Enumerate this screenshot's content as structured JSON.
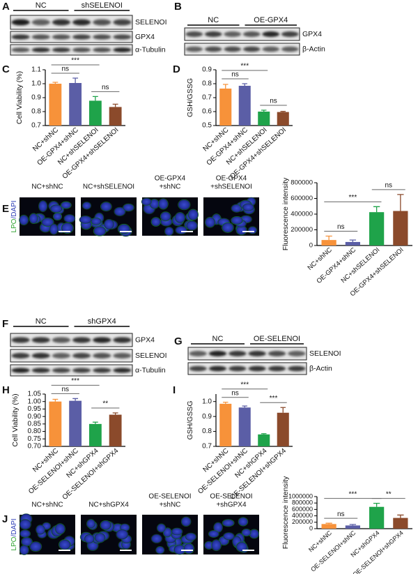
{
  "blots": [
    {
      "panel": "A",
      "groups": [
        "NC",
        "shSELENOI"
      ],
      "bands": [
        "SELENOI",
        "GPX4",
        "α-Tubulin"
      ]
    },
    {
      "panel": "B",
      "groups": [
        "NC",
        "OE-GPX4"
      ],
      "bands": [
        "GPX4",
        "β-Actin"
      ]
    },
    {
      "panel": "F",
      "groups": [
        "NC",
        "shGPX4"
      ],
      "bands": [
        "GPX4",
        "SELENOI",
        "α-Tubulin"
      ]
    },
    {
      "panel": "G",
      "groups": [
        "NC",
        "OE-SELENOI"
      ],
      "bands": [
        "SELENOI",
        "β-Actin"
      ]
    }
  ],
  "images": [
    {
      "panel": "E",
      "stain_label": "LPO",
      "counterstain_label": "/DAPI",
      "labels": [
        [
          "NC+shNC"
        ],
        [
          "NC+shSELENOI"
        ],
        [
          "OE-GPX4",
          "+shNC"
        ],
        [
          "OE-GPX4",
          "+shSELENOI"
        ]
      ]
    },
    {
      "panel": "J",
      "stain_label": "LPO",
      "counterstain_label": "/DAPI",
      "labels": [
        [
          "NC+shNC"
        ],
        [
          "NC+shGPX4"
        ],
        [
          "OE-SELENOI",
          "+shNC"
        ],
        [
          "OE-SELENOI",
          "+shGPX4"
        ]
      ]
    }
  ],
  "chart_data": [
    {
      "type": "bar",
      "panel": "C",
      "ylabel": "Cell Viability (%)",
      "categories": [
        "NC+shNC",
        "OE-GPX4+shNC",
        "NC+shSELENOI",
        "OE-GPX4+shSELENOI"
      ],
      "values": [
        1.0,
        1.005,
        0.878,
        0.833
      ],
      "errors": [
        0.01,
        0.035,
        0.03,
        0.02
      ],
      "colors": [
        "#f7923a",
        "#5b5ea6",
        "#1fa34a",
        "#8b4a2b"
      ],
      "ylim": [
        0.7,
        1.1
      ],
      "yticks": [
        0.7,
        0.8,
        0.9,
        {
          "value": 1,
          "label": "1.0"
        },
        1.1
      ],
      "annotations": [
        {
          "text": "ns",
          "between": [
            "NC+shNC",
            "OE-GPX4+shNC"
          ]
        },
        {
          "text": "ns",
          "between": [
            "NC+shSELENOI",
            "OE-GPX4+shSELENOI"
          ]
        },
        {
          "text": "***",
          "between": [
            "NC+shNC",
            "NC+shSELENOI"
          ]
        }
      ]
    },
    {
      "type": "bar",
      "panel": "D",
      "ylabel": "GSH/GSSG",
      "categories": [
        "NC+shNC",
        "OE-GPX4+shNC",
        "NC+shSELENOI",
        "OE-GPX4+shSELENOI"
      ],
      "values": [
        0.765,
        0.785,
        0.6,
        0.597
      ],
      "errors": [
        0.03,
        0.015,
        0.01,
        0.005
      ],
      "colors": [
        "#f7923a",
        "#5b5ea6",
        "#1fa34a",
        "#8b4a2b"
      ],
      "ylim": [
        0.5,
        0.9
      ],
      "yticks": [
        0.5,
        0.6,
        0.7,
        0.8,
        0.9
      ],
      "annotations": [
        {
          "text": "ns",
          "between": [
            "NC+shNC",
            "OE-GPX4+shNC"
          ]
        },
        {
          "text": "ns",
          "between": [
            "NC+shSELENOI",
            "OE-GPX4+shSELENOI"
          ]
        },
        {
          "text": "***",
          "between": [
            "NC+shNC",
            "NC+shSELENOI"
          ]
        }
      ]
    },
    {
      "type": "bar",
      "ylabel": "Fluorescence intensity",
      "categories": [
        "NC+shNC",
        "OE-GPX4+shNC",
        "NC+shSELENOI",
        "OE-GPX4+shSELENOI"
      ],
      "values": [
        70000,
        45000,
        425000,
        440000
      ],
      "errors": [
        50000,
        25000,
        70000,
        210000
      ],
      "colors": [
        "#f7923a",
        "#5b5ea6",
        "#1fa34a",
        "#8b4a2b"
      ],
      "ylim": [
        0,
        800000
      ],
      "yticks": [
        0,
        200000,
        400000,
        600000,
        800000
      ],
      "annotations": [
        {
          "text": "ns",
          "between": [
            "NC+shNC",
            "OE-GPX4+shNC"
          ]
        },
        {
          "text": "ns",
          "between": [
            "NC+shSELENOI",
            "OE-GPX4+shSELENOI"
          ]
        },
        {
          "text": "***",
          "between": [
            "NC+shNC",
            "NC+shSELENOI"
          ]
        }
      ]
    },
    {
      "type": "bar",
      "panel": "H",
      "ylabel": "Cell Viability (%)",
      "categories": [
        "NC+shNC",
        "OE-SELENOI+shNC",
        "NC+shGPX4",
        "OE-SELENOI+shGPX4"
      ],
      "values": [
        1.0,
        1.005,
        0.85,
        0.912
      ],
      "errors": [
        0.015,
        0.015,
        0.012,
        0.012
      ],
      "colors": [
        "#f7923a",
        "#5b5ea6",
        "#1fa34a",
        "#8b4a2b"
      ],
      "ylim": [
        0.7,
        1.05
      ],
      "yticks": [
        {
          "value": 0.7,
          "label": "0.70"
        },
        0.75,
        {
          "value": 0.8,
          "label": "0.80"
        },
        0.85,
        {
          "value": 0.9,
          "label": "0.90"
        },
        0.95,
        {
          "value": 1,
          "label": "1.00"
        },
        1.05
      ],
      "annotations": [
        {
          "text": "ns",
          "between": [
            "NC+shNC",
            "OE-SELENOI+shNC"
          ]
        },
        {
          "text": "**",
          "between": [
            "NC+shGPX4",
            "OE-SELENOI+shGPX4"
          ]
        },
        {
          "text": "***",
          "between": [
            "NC+shNC",
            "NC+shGPX4"
          ]
        }
      ]
    },
    {
      "type": "bar",
      "panel": "I",
      "ylabel": "GSH/GSSG",
      "categories": [
        "NC+shNC",
        "OE-SELENOI+shNC",
        "NC+shGPX4",
        "OE-SELENOI+shGPX4"
      ],
      "values": [
        0.985,
        0.96,
        0.78,
        0.925
      ],
      "errors": [
        0.01,
        0.01,
        0.005,
        0.035
      ],
      "colors": [
        "#f7923a",
        "#5b5ea6",
        "#1fa34a",
        "#8b4a2b"
      ],
      "ylim": [
        0.7,
        1.05
      ],
      "yticks": [
        0.7,
        0.8,
        0.9,
        {
          "value": 1,
          "label": "1.0"
        }
      ],
      "annotations": [
        {
          "text": "ns",
          "between": [
            "NC+shNC",
            "OE-SELENOI+shNC"
          ]
        },
        {
          "text": "***",
          "between": [
            "NC+shGPX4",
            "OE-SELENOI+shGPX4"
          ]
        },
        {
          "text": "***",
          "between": [
            "NC+shNC",
            "NC+shGPX4"
          ]
        }
      ]
    },
    {
      "type": "bar",
      "ylabel": "Fluorescence intensity",
      "categories": [
        "NC+shNC",
        "OE-SELENOI+shNC",
        "NC+shGPX4",
        "OE-SELENOI+shGPX4"
      ],
      "values": [
        145000,
        100000,
        680000,
        335000
      ],
      "errors": [
        25000,
        30000,
        110000,
        90000
      ],
      "colors": [
        "#f7923a",
        "#5b5ea6",
        "#1fa34a",
        "#8b4a2b"
      ],
      "ylim": [
        0,
        1000000
      ],
      "yticks": [
        0,
        200000,
        400000,
        600000,
        800000,
        1000000
      ],
      "annotations": [
        {
          "text": "ns",
          "between": [
            "NC+shNC",
            "OE-SELENOI+shNC"
          ]
        },
        {
          "text": "**",
          "between": [
            "NC+shGPX4",
            "OE-SELENOI+shGPX4"
          ]
        },
        {
          "text": "***",
          "between": [
            "NC+shNC",
            "NC+shGPX4"
          ]
        }
      ]
    }
  ]
}
